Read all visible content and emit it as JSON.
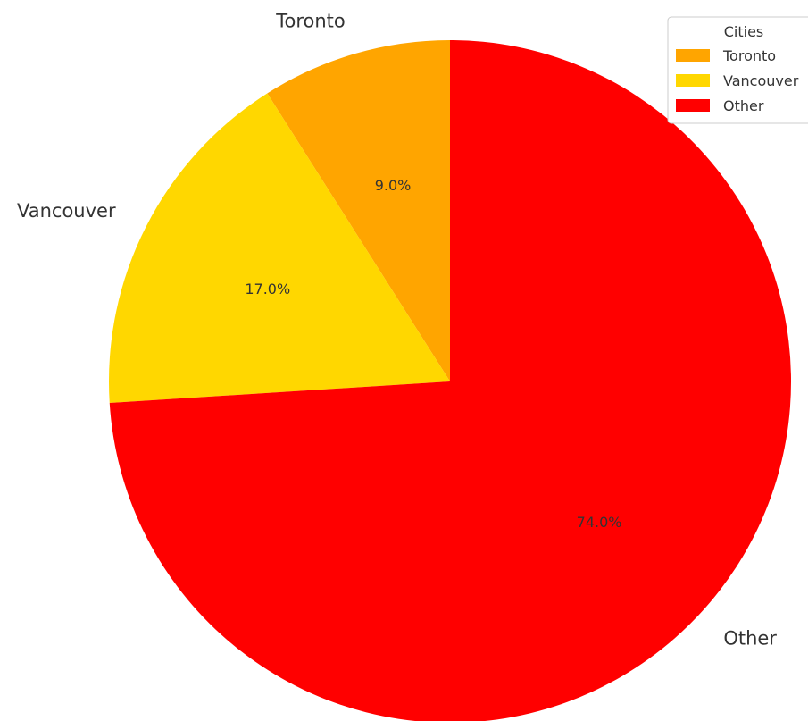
{
  "chart_data": {
    "type": "pie",
    "categories": [
      "Toronto",
      "Vancouver",
      "Other"
    ],
    "values": [
      9.0,
      17.0,
      74.0
    ],
    "value_labels": [
      "9.0%",
      "17.0%",
      "74.0%"
    ],
    "colors": [
      "#FFA500",
      "#FFD700",
      "#FF0000"
    ],
    "legend": {
      "title": "Cities",
      "placement": "top-right"
    },
    "start_angle_deg": 90,
    "direction": "counterclockwise"
  }
}
